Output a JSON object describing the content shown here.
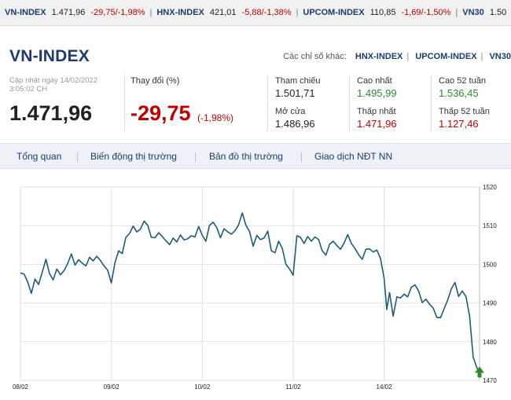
{
  "ticker": [
    {
      "name": "VN-INDEX",
      "value": "1.471,96",
      "change": "-29,75/-1,98%"
    },
    {
      "name": "HNX-INDEX",
      "value": "421,01",
      "change": "-5,88/-1,38%"
    },
    {
      "name": "UPCOM-INDEX",
      "value": "110,85",
      "change": "-1,69/-1,50%"
    },
    {
      "name": "VN30",
      "value": "1.50",
      "change": ""
    }
  ],
  "header": {
    "title": "VN-INDEX",
    "other_label": "Các chỉ số khác:",
    "other_links": [
      "HNX-INDEX",
      "UPCOM-INDEX",
      "VN30"
    ]
  },
  "stats": {
    "updated": "Cập nhật ngày 14/02/2022 3:05:02 CH",
    "value": "1.471,96",
    "change_label": "Thay đổi (%)",
    "change_value": "-29,75",
    "change_percent": "(-1,98%)",
    "ref_label": "Tham chiếu",
    "ref_value": "1.501,71",
    "open_label": "Mở cửa",
    "open_value": "1.486,96",
    "high_label": "Cao nhất",
    "high_value": "1.495,99",
    "low_label": "Thấp nhất",
    "low_value": "1.471,96",
    "high52_label": "Cao 52 tuần",
    "high52_value": "1.536,45",
    "low52_label": "Thấp 52 tuần",
    "low52_value": "1.127,46"
  },
  "tabs": [
    "Tổng quan",
    "Biến động thị trường",
    "Bản đồ thị trường",
    "Giao dịch NĐT NN"
  ],
  "colors": {
    "up": "#2e8b2e",
    "down": "#c00000",
    "line": "#1f5b7a",
    "title": "#1e3a6e"
  },
  "chart_data": {
    "type": "line",
    "x_tick_labels": [
      "08/02",
      "09/02",
      "10/02",
      "11/02",
      "14/02"
    ],
    "y_ticks": [
      1470,
      1480,
      1490,
      1500,
      1510,
      1520
    ],
    "ylim": [
      1470,
      1520
    ],
    "grid": true,
    "end_marker": "green-up-arrow",
    "x": [
      0,
      0.04,
      0.08,
      0.12,
      0.16,
      0.2,
      0.24,
      0.28,
      0.32,
      0.36,
      0.4,
      0.44,
      0.48,
      0.52,
      0.56,
      0.6,
      0.64,
      0.68,
      0.72,
      0.76,
      0.8,
      0.84,
      0.88,
      0.92,
      0.96,
      1.0,
      1.04,
      1.08,
      1.12,
      1.16,
      1.2,
      1.24,
      1.28,
      1.32,
      1.36,
      1.4,
      1.44,
      1.48,
      1.52,
      1.56,
      1.6,
      1.64,
      1.68,
      1.72,
      1.76,
      1.8,
      1.84,
      1.88,
      1.92,
      1.96,
      2.0,
      2.04,
      2.08,
      2.12,
      2.16,
      2.2,
      2.24,
      2.28,
      2.32,
      2.36,
      2.4,
      2.44,
      2.48,
      2.52,
      2.56,
      2.6,
      2.64,
      2.68,
      2.72,
      2.76,
      2.8,
      2.84,
      2.88,
      2.92,
      2.96,
      3.0,
      3.04,
      3.08,
      3.12,
      3.16,
      3.2,
      3.24,
      3.28,
      3.32,
      3.36,
      3.4,
      3.44,
      3.48,
      3.52,
      3.56,
      3.6,
      3.64,
      3.68,
      3.72,
      3.76,
      3.8,
      3.84,
      3.88,
      3.92,
      3.96,
      4.0,
      4.03,
      4.06,
      4.1,
      4.14,
      4.18,
      4.22,
      4.26,
      4.3,
      4.34,
      4.38,
      4.42,
      4.46,
      4.5,
      4.54,
      4.58,
      4.62,
      4.66,
      4.7,
      4.74,
      4.78,
      4.82,
      4.86,
      4.9,
      4.94,
      4.98,
      5.02,
      5.05
    ],
    "values": [
      1497.8,
      1497.5,
      1495.4,
      1492.5,
      1496.2,
      1494.8,
      1498.0,
      1501.3,
      1497.6,
      1496.0,
      1498.8,
      1497.3,
      1498.4,
      1500.2,
      1502.7,
      1499.8,
      1501.2,
      1500.3,
      1499.6,
      1501.8,
      1500.9,
      1502.1,
      1501.0,
      1499.6,
      1498.5,
      1495.2,
      1500.5,
      1503.5,
      1502.8,
      1507.0,
      1508.0,
      1509.9,
      1508.4,
      1509.1,
      1511.2,
      1510.1,
      1507.0,
      1506.9,
      1508.2,
      1507.2,
      1506.1,
      1505.1,
      1506.8,
      1505.8,
      1507.6,
      1506.3,
      1506.6,
      1507.4,
      1507.1,
      1509.8,
      1507.5,
      1506.0,
      1510.1,
      1510.9,
      1509.5,
      1506.9,
      1509.2,
      1508.4,
      1507.8,
      1508.7,
      1510.2,
      1513.3,
      1510.1,
      1508.5,
      1504.7,
      1507.5,
      1506.4,
      1506.8,
      1508.6,
      1503.5,
      1503.0,
      1506.0,
      1504.1,
      1500.0,
      1498.8,
      1497.2,
      1507.4,
      1507.0,
      1505.4,
      1507.2,
      1506.0,
      1507.1,
      1506.4,
      1503.5,
      1502.4,
      1505.2,
      1506.0,
      1504.9,
      1503.9,
      1505.5,
      1507.7,
      1505.4,
      1504.1,
      1502.5,
      1501.3,
      1503.9,
      1504.0,
      1503.2,
      1503.7,
      1501.6,
      1496.4,
      1488.3,
      1492.7,
      1486.6,
      1491.6,
      1491.3,
      1492.3,
      1491.6,
      1494.1,
      1494.7,
      1493.1,
      1490.1,
      1491.0,
      1489.7,
      1488.7,
      1486.3,
      1486.2,
      1488.5,
      1490.8,
      1493.7,
      1495.3,
      1491.7,
      1493.1,
      1491.7,
      1486.7,
      1476.0,
      1473.3,
      1471.96
    ]
  }
}
